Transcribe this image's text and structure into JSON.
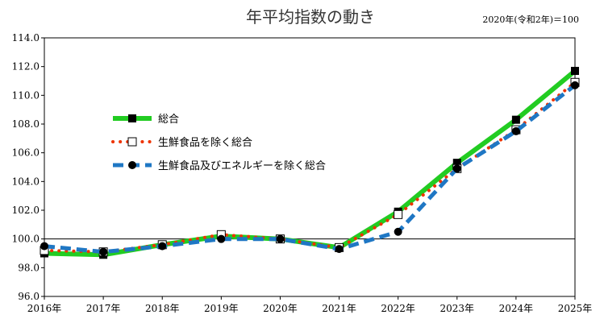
{
  "chart_data": {
    "type": "line",
    "title": "年平均指数の動き",
    "note": "2020年(令和2年)＝100",
    "categories": [
      "2016年",
      "2017年",
      "2018年",
      "2019年",
      "2020年",
      "2021年",
      "2022年",
      "2023年",
      "2024年",
      "2025年"
    ],
    "ylim": [
      96.0,
      114.0
    ],
    "yticks": [
      "96.0",
      "98.0",
      "100.0",
      "102.0",
      "104.0",
      "106.0",
      "108.0",
      "110.0",
      "112.0",
      "114.0"
    ],
    "reference_line": 100.0,
    "grid": false,
    "legend_position": "upper-left",
    "series": [
      {
        "name": "総合",
        "values": [
          99.0,
          98.9,
          99.6,
          100.2,
          100.0,
          99.4,
          101.9,
          105.3,
          108.3,
          111.7
        ],
        "color": "#22cc22",
        "style": "solid",
        "marker": "filled-square"
      },
      {
        "name": "生鮮食品を除く総合",
        "values": [
          99.2,
          99.1,
          99.6,
          100.3,
          100.0,
          99.4,
          101.7,
          104.9,
          107.6,
          110.9
        ],
        "color": "#ee3300",
        "style": "dotted",
        "marker": "open-square"
      },
      {
        "name": "生鮮食品及びエネルギーを除く総合",
        "values": [
          99.5,
          99.1,
          99.5,
          100.0,
          100.0,
          99.3,
          100.5,
          104.9,
          107.5,
          110.7
        ],
        "color": "#1f77c4",
        "style": "dashed",
        "marker": "filled-circle"
      }
    ]
  }
}
